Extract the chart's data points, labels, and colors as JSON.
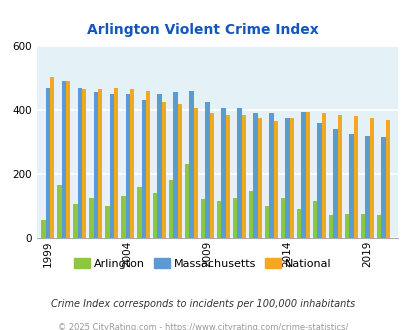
{
  "title": "Arlington Violent Crime Index",
  "colors": {
    "arlington": "#8dc63f",
    "massachusetts": "#5b9bd5",
    "national": "#f5a623"
  },
  "bg_color": "#e4f1f7",
  "ylim": [
    0,
    600
  ],
  "yticks": [
    0,
    200,
    400,
    600
  ],
  "title_color": "#1455c0",
  "legend_labels": [
    "Arlington",
    "Massachusetts",
    "National"
  ],
  "footnote1": "Crime Index corresponds to incidents per 100,000 inhabitants",
  "footnote2": "© 2025 CityRating.com - https://www.cityrating.com/crime-statistics/",
  "xtick_positions": [
    0,
    5,
    10,
    15,
    20
  ],
  "xtick_labels": [
    "1999",
    "2004",
    "2009",
    "2014",
    "2019"
  ],
  "plot_indices": [
    0,
    1,
    2,
    3,
    4,
    5,
    6,
    7,
    8,
    9,
    10,
    11,
    12,
    13,
    14,
    15,
    16,
    17,
    18,
    19,
    20,
    21
  ],
  "arlington_vals": [
    55,
    165,
    105,
    125,
    100,
    130,
    160,
    140,
    180,
    230,
    120,
    115,
    125,
    145,
    100,
    125,
    90,
    115,
    70,
    75,
    75,
    70
  ],
  "massachusetts_vals": [
    470,
    490,
    470,
    455,
    450,
    450,
    430,
    450,
    455,
    460,
    425,
    405,
    405,
    390,
    390,
    375,
    395,
    360,
    340,
    325,
    320,
    315
  ],
  "national_vals": [
    505,
    490,
    465,
    465,
    470,
    465,
    460,
    425,
    420,
    405,
    390,
    385,
    385,
    375,
    365,
    375,
    395,
    390,
    385,
    380,
    375,
    370
  ],
  "bar_width": 0.27
}
